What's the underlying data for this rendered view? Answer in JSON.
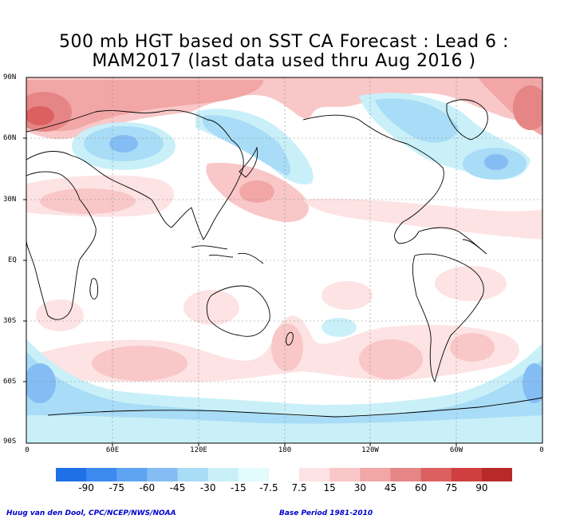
{
  "title": {
    "line1": "500 mb HGT based on SST CA Forecast : Lead 6 :",
    "line2": "MAM2017 (last data used thru Aug 2016 )"
  },
  "map": {
    "lat_labels": [
      "90N",
      "60N",
      "30N",
      "EQ",
      "30S",
      "60S",
      "90S"
    ],
    "lon_labels": [
      "0",
      "60E",
      "120E",
      "180",
      "120W",
      "60W",
      "0"
    ]
  },
  "legend": {
    "levels": [
      "-90",
      "-75",
      "-60",
      "-45",
      "-30",
      "-15",
      "-7.5",
      "7.5",
      "15",
      "30",
      "45",
      "60",
      "75",
      "90"
    ],
    "colors": [
      "#1f6fe6",
      "#3c8af0",
      "#5ea4f2",
      "#84bdf3",
      "#a9dcf6",
      "#c9f0f8",
      "#e2fbfd",
      "#ffffff",
      "#fde3e3",
      "#f9c7c7",
      "#f2a6a6",
      "#e68585",
      "#dc6060",
      "#cf3f3f",
      "#b82a2a"
    ]
  },
  "footer": {
    "credit": "Huug van den Dool, CPC/NCEP/NWS/NOAA",
    "base_period": "Base Period 1981-2010"
  }
}
